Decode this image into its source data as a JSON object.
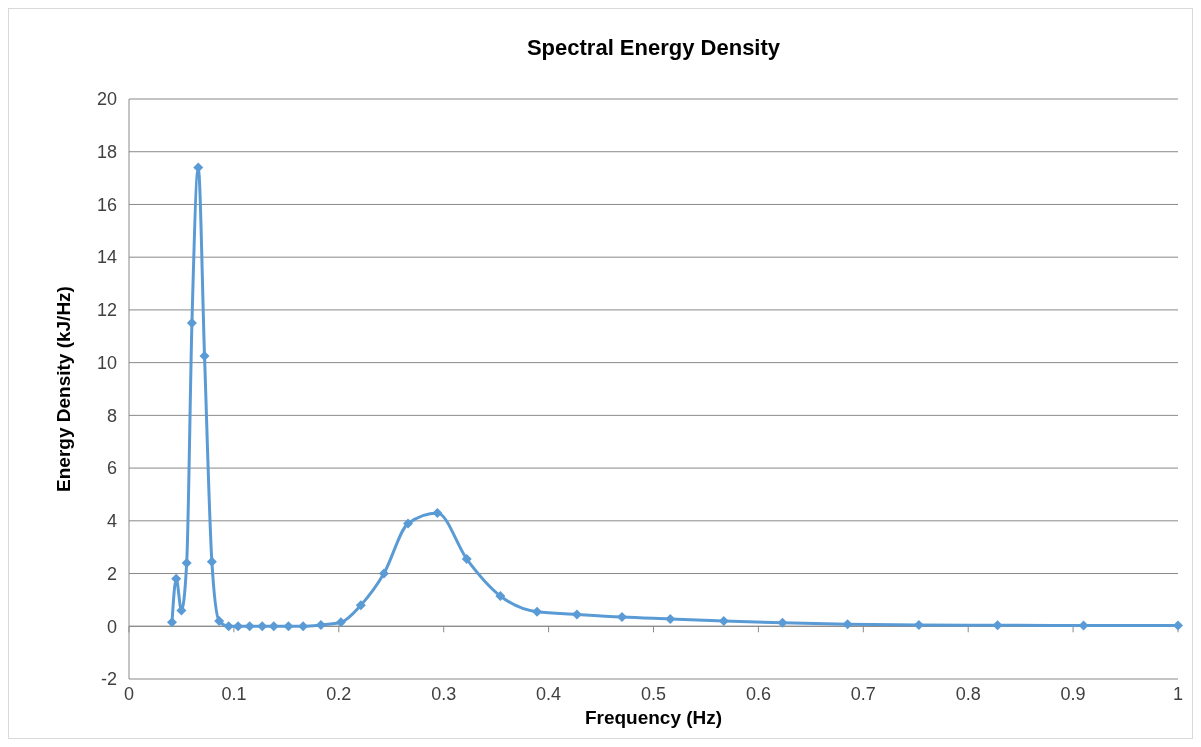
{
  "chart_data": {
    "type": "line",
    "title": "Spectral Energy Density",
    "xlabel": "Frequency (Hz)",
    "ylabel": "Energy Density (kJ/Hz)",
    "x": [
      0.041,
      0.045,
      0.05,
      0.055,
      0.06,
      0.066,
      0.072,
      0.079,
      0.086,
      0.095,
      0.104,
      0.115,
      0.127,
      0.138,
      0.152,
      0.166,
      0.183,
      0.202,
      0.221,
      0.243,
      0.266,
      0.294,
      0.322,
      0.354,
      0.389,
      0.427,
      0.47,
      0.516,
      0.567,
      0.623,
      0.685,
      0.753,
      0.828,
      0.91,
      1.0
    ],
    "series": [
      {
        "color": "#5b9bd5",
        "values": [
          0.15,
          1.8,
          0.6,
          2.4,
          11.5,
          17.4,
          10.25,
          2.45,
          0.2,
          0,
          0,
          0,
          0,
          0,
          0,
          0,
          0.05,
          0.15,
          0.8,
          2.0,
          3.9,
          4.3,
          2.55,
          1.15,
          0.55,
          0.45,
          0.35,
          0.28,
          0.2,
          0.13,
          0.08,
          0.05,
          0.04,
          0.03,
          0.03
        ]
      }
    ],
    "xlim": [
      0,
      1
    ],
    "xticks": [
      0,
      0.1,
      0.2,
      0.3,
      0.4,
      0.5,
      0.6,
      0.7,
      0.8,
      0.9,
      1
    ],
    "ylim": [
      -2,
      20
    ],
    "yticks": [
      -2,
      0,
      2,
      4,
      6,
      8,
      10,
      12,
      14,
      16,
      18,
      20
    ],
    "grid": "y",
    "marker": "diamond",
    "line_style": "solid"
  }
}
